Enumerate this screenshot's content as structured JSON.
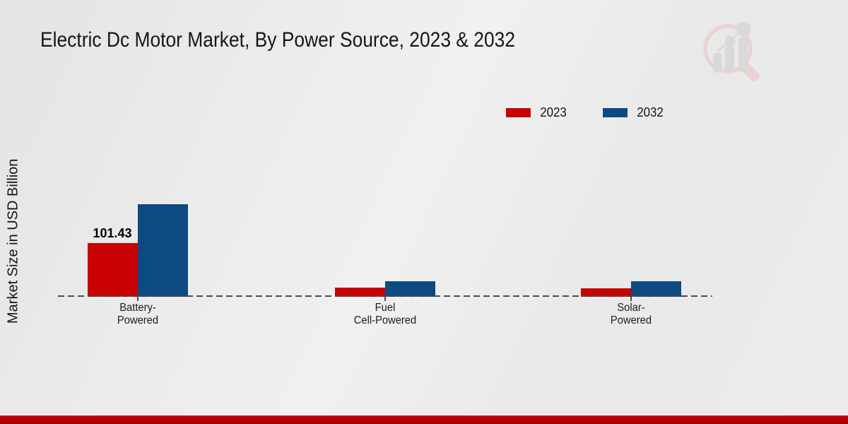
{
  "page": {
    "title": "Electric Dc Motor Market, By Power Source, 2023 & 2032",
    "y_axis_label": "Market Size in USD Billion",
    "footer_color": "#b00202",
    "logo": "magnifier-bar-chart-logo"
  },
  "legend": {
    "items": [
      {
        "label": "2023",
        "color": "#c80202"
      },
      {
        "label": "2032",
        "color": "#0d4a82"
      }
    ]
  },
  "chart_data": {
    "type": "bar",
    "title": "Electric Dc Motor Market, By Power Source, 2023 & 2032",
    "xlabel": "",
    "ylabel": "Market Size in USD Billion",
    "categories": [
      "Battery-Powered",
      "Fuel Cell-Powered",
      "Solar-Powered"
    ],
    "category_label_lines": [
      [
        "Battery-",
        "Powered"
      ],
      [
        "Fuel",
        "Cell-Powered"
      ],
      [
        "Solar-",
        "Powered"
      ]
    ],
    "series": [
      {
        "name": "2023",
        "color": "#c80202",
        "values": [
          101.43,
          17.3,
          16.0
        ]
      },
      {
        "name": "2032",
        "color": "#0d4a82",
        "values": [
          175.0,
          29.4,
          29.4
        ]
      }
    ],
    "value_labels": [
      {
        "series": "2023",
        "category": "Battery-Powered",
        "text": "101.43"
      }
    ],
    "ylim": [
      0,
      200
    ],
    "grid": false,
    "baseline_style": "dashed",
    "legend_position": "top-right"
  }
}
